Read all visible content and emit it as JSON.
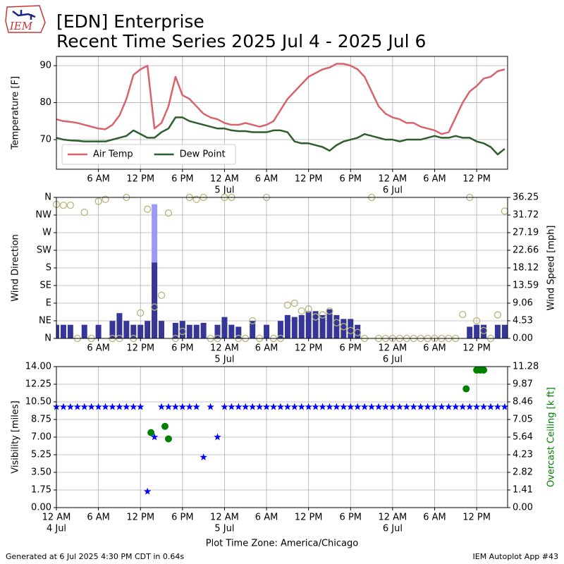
{
  "logo_text": "IEM",
  "title": "[EDN] Enterprise",
  "subtitle": "Recent Time Series 2025 Jul 4 - 2025 Jul 6",
  "footer_left": "Generated at 6 Jul 2025 4:30 PM CDT in 0.64s",
  "footer_right": "IEM Autoplot App #43",
  "chart_data": [
    {
      "type": "line",
      "ylabel": "Temperature [F]",
      "grid": true,
      "legend": "lower left",
      "xlim": [
        "2025-07-04T00:00",
        "2025-07-06T16:25"
      ],
      "xticks": [
        {
          "value": "2025-07-04T06:00",
          "label": "6 AM"
        },
        {
          "value": "2025-07-04T12:00",
          "label": "12 PM"
        },
        {
          "value": "2025-07-04T18:00",
          "label": "6 PM"
        },
        {
          "value": "2025-07-05T00:00",
          "label": "12 AM",
          "date": "5 Jul"
        },
        {
          "value": "2025-07-05T06:00",
          "label": "6 AM"
        },
        {
          "value": "2025-07-05T12:00",
          "label": "12 PM"
        },
        {
          "value": "2025-07-05T18:00",
          "label": "6 PM"
        },
        {
          "value": "2025-07-06T00:00",
          "label": "12 AM",
          "date": "6 Jul"
        },
        {
          "value": "2025-07-06T06:00",
          "label": "6 AM"
        },
        {
          "value": "2025-07-06T12:00",
          "label": "12 PM"
        }
      ],
      "ylim": [
        62,
        92.5
      ],
      "yticks": [
        70,
        80,
        90
      ],
      "x": [
        "2025-07-04T00:00",
        "2025-07-04T01:00",
        "2025-07-04T02:00",
        "2025-07-04T03:00",
        "2025-07-04T04:00",
        "2025-07-04T05:00",
        "2025-07-04T06:00",
        "2025-07-04T07:00",
        "2025-07-04T08:00",
        "2025-07-04T09:00",
        "2025-07-04T10:00",
        "2025-07-04T11:00",
        "2025-07-04T12:00",
        "2025-07-04T13:00",
        "2025-07-04T14:00",
        "2025-07-04T15:00",
        "2025-07-04T16:00",
        "2025-07-04T17:00",
        "2025-07-04T18:00",
        "2025-07-04T19:00",
        "2025-07-04T20:00",
        "2025-07-04T21:00",
        "2025-07-04T22:00",
        "2025-07-04T23:00",
        "2025-07-05T00:00",
        "2025-07-05T01:00",
        "2025-07-05T02:00",
        "2025-07-05T03:00",
        "2025-07-05T04:00",
        "2025-07-05T05:00",
        "2025-07-05T06:00",
        "2025-07-05T07:00",
        "2025-07-05T08:00",
        "2025-07-05T09:00",
        "2025-07-05T10:00",
        "2025-07-05T11:00",
        "2025-07-05T12:00",
        "2025-07-05T13:00",
        "2025-07-05T14:00",
        "2025-07-05T15:00",
        "2025-07-05T16:00",
        "2025-07-05T17:00",
        "2025-07-05T18:00",
        "2025-07-05T19:00",
        "2025-07-05T20:00",
        "2025-07-05T21:00",
        "2025-07-05T22:00",
        "2025-07-05T23:00",
        "2025-07-06T00:00",
        "2025-07-06T01:00",
        "2025-07-06T02:00",
        "2025-07-06T03:00",
        "2025-07-06T04:00",
        "2025-07-06T05:00",
        "2025-07-06T06:00",
        "2025-07-06T07:00",
        "2025-07-06T08:00",
        "2025-07-06T09:00",
        "2025-07-06T10:00",
        "2025-07-06T11:00",
        "2025-07-06T12:00",
        "2025-07-06T13:00",
        "2025-07-06T14:00",
        "2025-07-06T15:00",
        "2025-07-06T16:00"
      ],
      "series": [
        {
          "name": "Air Temp",
          "color": "#d9636b",
          "values": [
            75.5,
            75,
            74.8,
            74.5,
            74,
            73.5,
            73,
            72.8,
            74,
            76.5,
            81,
            87.5,
            89,
            90,
            73,
            74.5,
            79,
            87,
            82,
            81,
            79,
            77,
            76,
            75.5,
            74.5,
            74,
            74,
            74.5,
            74,
            73.5,
            74,
            75,
            78,
            81,
            83,
            85,
            87,
            88,
            89,
            89.5,
            90.5,
            90.5,
            90,
            89,
            87,
            83,
            79,
            77,
            76,
            75.5,
            74.5,
            74.5,
            73.5,
            73,
            72.5,
            71.5,
            72,
            76,
            80,
            83,
            84.5,
            86.5,
            87,
            88.5,
            89
          ]
        },
        {
          "name": "Dew Point",
          "color": "#2e5e2e",
          "values": [
            70.5,
            70,
            69.8,
            69.7,
            69.5,
            69.5,
            69.5,
            69.5,
            70,
            70.5,
            71,
            72.5,
            71.5,
            70.5,
            70.5,
            72,
            73,
            76,
            76,
            75,
            74.5,
            74,
            73.5,
            73,
            73,
            72.5,
            72.3,
            72.3,
            72,
            72,
            72,
            72.5,
            72.5,
            72,
            69.5,
            69,
            69,
            68.5,
            68,
            67,
            68.5,
            69.5,
            70,
            70.5,
            71.5,
            71,
            70.5,
            70,
            70,
            69.5,
            70,
            70,
            70,
            70.5,
            71,
            70.5,
            70.5,
            71,
            70.5,
            70.5,
            69.5,
            69,
            68,
            66,
            67.5
          ]
        }
      ]
    },
    {
      "type": "bar",
      "ylabel": "Wind Direction",
      "y2label": "Wind Speed [mph]",
      "grid": true,
      "xlim": [
        "2025-07-04T00:00",
        "2025-07-06T16:25"
      ],
      "xticks": [
        {
          "value": "2025-07-04T06:00",
          "label": "6 AM"
        },
        {
          "value": "2025-07-04T12:00",
          "label": "12 PM"
        },
        {
          "value": "2025-07-04T18:00",
          "label": "6 PM"
        },
        {
          "value": "2025-07-05T00:00",
          "label": "12 AM",
          "date": "5 Jul"
        },
        {
          "value": "2025-07-05T06:00",
          "label": "6 AM"
        },
        {
          "value": "2025-07-05T12:00",
          "label": "12 PM"
        },
        {
          "value": "2025-07-05T18:00",
          "label": "6 PM"
        },
        {
          "value": "2025-07-06T00:00",
          "label": "12 AM",
          "date": "6 Jul"
        },
        {
          "value": "2025-07-06T06:00",
          "label": "6 AM"
        },
        {
          "value": "2025-07-06T12:00",
          "label": "12 PM"
        }
      ],
      "ylim": [
        0,
        360
      ],
      "yticks": [
        {
          "value": 0,
          "label": "N"
        },
        {
          "value": 45,
          "label": "NE"
        },
        {
          "value": 90,
          "label": "E"
        },
        {
          "value": 135,
          "label": "SE"
        },
        {
          "value": 180,
          "label": "S"
        },
        {
          "value": 225,
          "label": "SW"
        },
        {
          "value": 270,
          "label": "W"
        },
        {
          "value": 315,
          "label": "NW"
        },
        {
          "value": 360,
          "label": "N"
        }
      ],
      "y2lim": [
        0,
        36.25
      ],
      "y2ticks": [
        {
          "value": 0,
          "label": "0.00"
        },
        4.53,
        9.06,
        13.59,
        18.12,
        22.66,
        27.19,
        31.72,
        36.25
      ],
      "x": [
        "2025-07-04T00:00",
        "2025-07-04T01:00",
        "2025-07-04T02:00",
        "2025-07-04T03:00",
        "2025-07-04T04:00",
        "2025-07-04T05:00",
        "2025-07-04T06:00",
        "2025-07-04T07:00",
        "2025-07-04T08:00",
        "2025-07-04T09:00",
        "2025-07-04T10:00",
        "2025-07-04T11:00",
        "2025-07-04T12:00",
        "2025-07-04T13:00",
        "2025-07-04T14:00",
        "2025-07-04T15:00",
        "2025-07-04T16:00",
        "2025-07-04T17:00",
        "2025-07-04T18:00",
        "2025-07-04T19:00",
        "2025-07-04T20:00",
        "2025-07-04T21:00",
        "2025-07-04T22:00",
        "2025-07-04T23:00",
        "2025-07-05T00:00",
        "2025-07-05T01:00",
        "2025-07-05T02:00",
        "2025-07-05T03:00",
        "2025-07-05T04:00",
        "2025-07-05T05:00",
        "2025-07-05T06:00",
        "2025-07-05T07:00",
        "2025-07-05T08:00",
        "2025-07-05T09:00",
        "2025-07-05T10:00",
        "2025-07-05T11:00",
        "2025-07-05T12:00",
        "2025-07-05T13:00",
        "2025-07-05T14:00",
        "2025-07-05T15:00",
        "2025-07-05T16:00",
        "2025-07-05T17:00",
        "2025-07-05T18:00",
        "2025-07-05T19:00",
        "2025-07-05T20:00",
        "2025-07-05T21:00",
        "2025-07-05T22:00",
        "2025-07-05T23:00",
        "2025-07-06T00:00",
        "2025-07-06T01:00",
        "2025-07-06T02:00",
        "2025-07-06T03:00",
        "2025-07-06T04:00",
        "2025-07-06T05:00",
        "2025-07-06T06:00",
        "2025-07-06T07:00",
        "2025-07-06T08:00",
        "2025-07-06T09:00",
        "2025-07-06T10:00",
        "2025-07-06T11:00",
        "2025-07-06T12:00",
        "2025-07-06T13:00",
        "2025-07-06T14:00",
        "2025-07-06T15:00",
        "2025-07-06T16:00"
      ],
      "series": [
        {
          "type": "bar",
          "axis": "y2",
          "color": "#9999ff",
          "values": [
            null,
            null,
            null,
            null,
            null,
            null,
            null,
            null,
            null,
            null,
            null,
            null,
            null,
            null,
            34.5,
            null,
            null,
            null,
            null,
            null,
            null,
            null,
            null,
            null,
            null,
            null,
            null,
            null,
            null,
            null,
            null,
            null,
            null,
            null,
            null,
            null,
            null,
            null,
            null,
            null,
            null,
            null,
            null,
            null,
            null,
            null,
            null,
            null,
            null,
            null,
            null,
            null,
            null,
            null,
            null,
            null,
            null,
            null,
            null,
            null,
            null,
            null,
            null,
            null,
            null
          ]
        },
        {
          "type": "bar",
          "axis": "y2",
          "color": "#363699",
          "values": [
            3.5,
            3.5,
            3.5,
            0,
            3.5,
            0,
            3.5,
            0,
            4.5,
            6.5,
            4.5,
            3.5,
            3.5,
            4.5,
            19.5,
            4.5,
            0,
            4,
            4.5,
            3.5,
            3.5,
            4,
            0,
            3.5,
            5.5,
            3.5,
            3,
            0,
            4.5,
            0,
            3.5,
            0,
            4.5,
            6,
            5.5,
            6,
            7,
            7,
            6,
            7.5,
            6,
            5,
            5,
            3.5,
            0,
            0,
            0,
            0,
            0,
            0,
            0,
            0,
            0,
            0,
            0,
            0,
            0,
            0,
            0,
            3,
            3.5,
            3.5,
            0,
            3.5,
            3.5
          ]
        },
        {
          "type": "scatter",
          "marker": "circle-open",
          "color": "#b5b57a",
          "values": [
            342,
            340,
            340,
            0,
            322,
            0,
            350,
            355,
            0,
            0,
            360,
            0,
            65,
            330,
            80,
            110,
            320,
            0,
            18,
            360,
            355,
            360,
            0,
            0,
            360,
            360,
            0,
            0,
            45,
            0,
            360,
            0,
            0,
            85,
            90,
            70,
            75,
            55,
            60,
            70,
            40,
            30,
            20,
            15,
            0,
            360,
            0,
            0,
            0,
            0,
            0,
            0,
            0,
            0,
            0,
            0,
            0,
            0,
            61,
            360,
            45,
            20,
            0,
            60,
            325
          ]
        }
      ]
    },
    {
      "type": "scatter",
      "ylabel": "Visibility [miles]",
      "y2label": "Overcast Ceiling [k ft]",
      "xlabel": "Plot Time Zone: America/Chicago",
      "grid": true,
      "xlim": [
        "2025-07-04T00:00",
        "2025-07-06T16:25"
      ],
      "xticks": [
        {
          "value": "2025-07-04T00:00",
          "label": "12 AM",
          "date": "4 Jul"
        },
        {
          "value": "2025-07-04T06:00",
          "label": "6 AM"
        },
        {
          "value": "2025-07-04T12:00",
          "label": "12 PM"
        },
        {
          "value": "2025-07-04T18:00",
          "label": "6 PM"
        },
        {
          "value": "2025-07-05T00:00",
          "label": "12 AM",
          "date": "5 Jul"
        },
        {
          "value": "2025-07-05T06:00",
          "label": "6 AM"
        },
        {
          "value": "2025-07-05T12:00",
          "label": "12 PM"
        },
        {
          "value": "2025-07-05T18:00",
          "label": "6 PM"
        },
        {
          "value": "2025-07-06T00:00",
          "label": "12 AM",
          "date": "6 Jul"
        },
        {
          "value": "2025-07-06T06:00",
          "label": "6 AM"
        },
        {
          "value": "2025-07-06T12:00",
          "label": "12 PM"
        }
      ],
      "ylim": [
        0,
        14
      ],
      "yticks": [
        {
          "value": 0,
          "label": "0.00"
        },
        1.75,
        {
          "value": 3.5,
          "label": "3.50"
        },
        5.25,
        {
          "value": 7,
          "label": "7.00"
        },
        8.75,
        {
          "value": 10.5,
          "label": "10.50"
        },
        12.25,
        {
          "value": 14,
          "label": "14.00"
        }
      ],
      "y2lim": [
        0,
        11.28
      ],
      "y2ticks": [
        {
          "value": 0,
          "label": "0.00"
        },
        1.41,
        2.82,
        4.23,
        5.64,
        7.05,
        8.46,
        9.87,
        11.28
      ],
      "x": [
        "2025-07-04T00:00",
        "2025-07-04T01:00",
        "2025-07-04T02:00",
        "2025-07-04T03:00",
        "2025-07-04T04:00",
        "2025-07-04T05:00",
        "2025-07-04T06:00",
        "2025-07-04T07:00",
        "2025-07-04T08:00",
        "2025-07-04T09:00",
        "2025-07-04T10:00",
        "2025-07-04T11:00",
        "2025-07-04T12:00",
        "2025-07-04T13:00",
        "2025-07-04T14:00",
        "2025-07-04T15:00",
        "2025-07-04T16:00",
        "2025-07-04T17:00",
        "2025-07-04T18:00",
        "2025-07-04T19:00",
        "2025-07-04T20:00",
        "2025-07-04T21:00",
        "2025-07-04T22:00",
        "2025-07-04T23:00",
        "2025-07-05T00:00",
        "2025-07-05T01:00",
        "2025-07-05T02:00",
        "2025-07-05T03:00",
        "2025-07-05T04:00",
        "2025-07-05T05:00",
        "2025-07-05T06:00",
        "2025-07-05T07:00",
        "2025-07-05T08:00",
        "2025-07-05T09:00",
        "2025-07-05T10:00",
        "2025-07-05T11:00",
        "2025-07-05T12:00",
        "2025-07-05T13:00",
        "2025-07-05T14:00",
        "2025-07-05T15:00",
        "2025-07-05T16:00",
        "2025-07-05T17:00",
        "2025-07-05T18:00",
        "2025-07-05T19:00",
        "2025-07-05T20:00",
        "2025-07-05T21:00",
        "2025-07-05T22:00",
        "2025-07-05T23:00",
        "2025-07-06T00:00",
        "2025-07-06T01:00",
        "2025-07-06T02:00",
        "2025-07-06T03:00",
        "2025-07-06T04:00",
        "2025-07-06T05:00",
        "2025-07-06T06:00",
        "2025-07-06T07:00",
        "2025-07-06T08:00",
        "2025-07-06T09:00",
        "2025-07-06T10:00",
        "2025-07-06T11:00",
        "2025-07-06T12:00",
        "2025-07-06T13:00",
        "2025-07-06T14:00",
        "2025-07-06T15:00",
        "2025-07-06T16:00"
      ],
      "series": [
        {
          "type": "scatter",
          "marker": "star",
          "color": "#0000ff",
          "values": [
            10,
            10,
            10,
            10,
            10,
            10,
            10,
            10,
            10,
            10,
            10,
            10,
            10,
            1.6,
            7,
            10,
            10,
            10,
            10,
            10,
            10,
            5,
            10,
            7,
            10,
            10,
            10,
            10,
            10,
            10,
            10,
            10,
            10,
            10,
            10,
            10,
            10,
            10,
            10,
            10,
            10,
            10,
            10,
            10,
            10,
            10,
            10,
            10,
            10,
            10,
            10,
            10,
            10,
            10,
            10,
            10,
            10,
            10,
            10,
            10,
            10,
            10,
            10,
            10,
            10
          ]
        },
        {
          "type": "scatter",
          "marker": "dot",
          "axis": "y2",
          "color": "#008000",
          "x": [
            "2025-07-04T13:30",
            "2025-07-04T15:30",
            "2025-07-04T16:00",
            "2025-07-06T10:30",
            "2025-07-06T12:00",
            "2025-07-06T12:30",
            "2025-07-06T13:00"
          ],
          "values": [
            6,
            6.5,
            5.5,
            9.5,
            11,
            11,
            11
          ]
        }
      ]
    }
  ]
}
